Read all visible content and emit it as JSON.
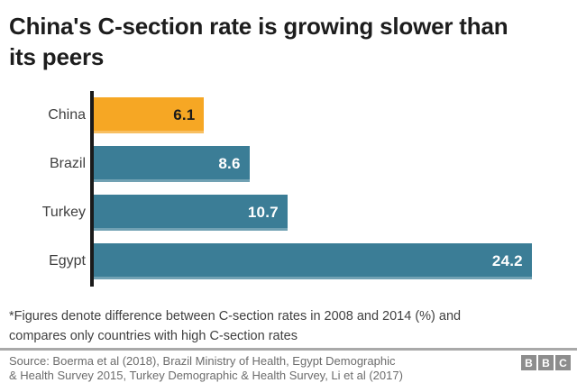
{
  "page": {
    "title": "China's C-section rate is growing slower than its peers"
  },
  "chart_data": {
    "type": "bar",
    "orientation": "horizontal",
    "title": "China's C-section rate is growing slower than its peers",
    "xlabel": "",
    "ylabel": "",
    "categories": [
      "China",
      "Brazil",
      "Turkey",
      "Egypt"
    ],
    "values": [
      6.1,
      8.6,
      10.7,
      24.2
    ],
    "value_labels": [
      "6.1",
      "8.6",
      "10.7",
      "24.2"
    ],
    "bar_colors": [
      "#f6a724",
      "#3b7d96",
      "#3b7d96",
      "#3b7d96"
    ],
    "value_text_colors": [
      "#1a1a1a",
      "#ffffff",
      "#ffffff",
      "#ffffff"
    ],
    "highlight_category": "China",
    "xlim": [
      0,
      26.7
    ],
    "grid": false,
    "legend": false,
    "axis_line_color": "#1a1a1a"
  },
  "footnote": {
    "lines": [
      "*Figures denote difference between C-section rates in 2008 and 2014 (%) and",
      "compares only countries with high C-section rates"
    ]
  },
  "source": {
    "lines": [
      "Source: Boerma et al (2018), Brazil Ministry of Health, Egypt Demographic",
      "& Health Survey 2015, Turkey Demographic & Health Survey, Li et al (2017)"
    ]
  },
  "branding": {
    "logo_letters": [
      "B",
      "B",
      "C"
    ],
    "logo_block_color": "#8d8d8d"
  }
}
